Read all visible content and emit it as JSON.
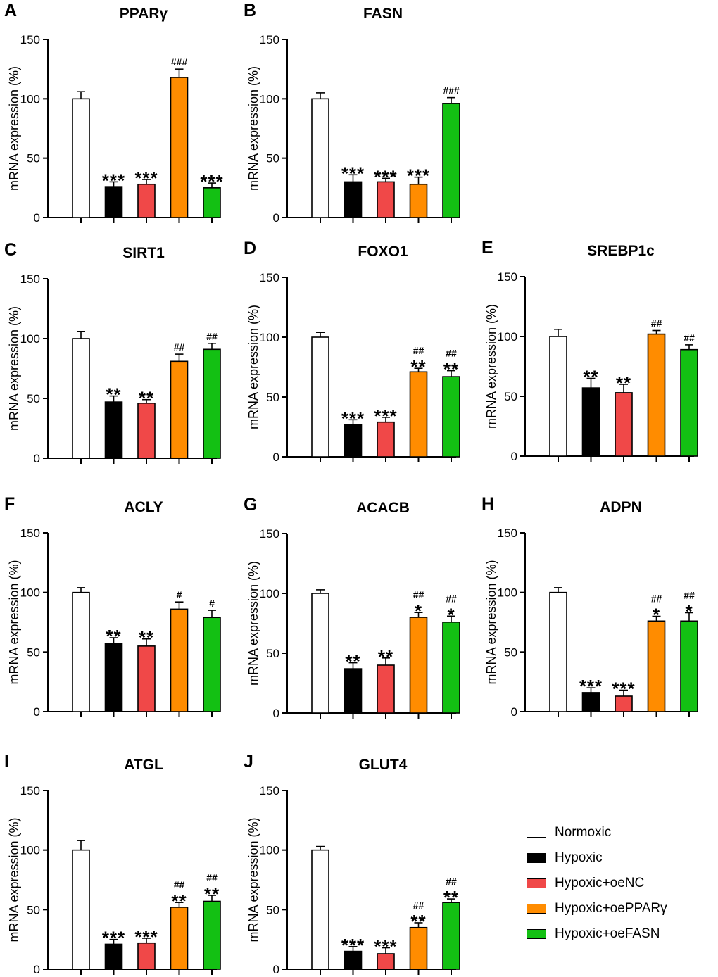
{
  "chart_data": {
    "type": "bar",
    "ylabel": "mRNA expression (%)",
    "ylim": [
      0,
      150
    ],
    "yticks": [
      "0",
      "50",
      "100",
      "150"
    ],
    "categories": [
      "Normoxic",
      "Hypoxic",
      "Hypoxic+oeNC",
      "Hypoxic+oePPARγ",
      "Hypoxic+oeFASN"
    ],
    "colors": [
      "#ffffff",
      "#000000",
      "#f04848",
      "#ff8c00",
      "#13c013"
    ],
    "panels": [
      {
        "letter": "A",
        "title": "PPARγ",
        "values": [
          100,
          26,
          28,
          118,
          25
        ],
        "errors": [
          6,
          4,
          4,
          7,
          4
        ],
        "stars": [
          "",
          "***",
          "***",
          "",
          "***"
        ],
        "hashes": [
          "",
          "",
          "",
          "###",
          ""
        ]
      },
      {
        "letter": "B",
        "title": "FASN",
        "values": [
          100,
          30,
          30,
          28,
          96
        ],
        "errors": [
          5,
          6,
          3,
          6,
          5
        ],
        "stars": [
          "",
          "***",
          "***",
          "***",
          ""
        ],
        "hashes": [
          "",
          "",
          "",
          "",
          "###"
        ]
      },
      {
        "letter": "C",
        "title": "SIRT1",
        "values": [
          100,
          47,
          46,
          81,
          91
        ],
        "errors": [
          6,
          5,
          3,
          6,
          5
        ],
        "stars": [
          "",
          "**",
          "**",
          "",
          ""
        ],
        "hashes": [
          "",
          "",
          "",
          "##",
          "##"
        ]
      },
      {
        "letter": "D",
        "title": "FOXO1",
        "values": [
          100,
          27,
          29,
          71,
          67
        ],
        "errors": [
          4,
          4,
          4,
          3,
          5
        ],
        "stars": [
          "",
          "***",
          "***",
          "**",
          "**"
        ],
        "hashes": [
          "",
          "",
          "",
          "##",
          "##"
        ]
      },
      {
        "letter": "E",
        "title": "SREBP1c",
        "values": [
          100,
          57,
          53,
          102,
          89
        ],
        "errors": [
          6,
          8,
          7,
          3,
          4
        ],
        "stars": [
          "",
          "**",
          "**",
          "",
          ""
        ],
        "hashes": [
          "",
          "",
          "",
          "##",
          "##"
        ]
      },
      {
        "letter": "F",
        "title": "ACLY",
        "values": [
          100,
          57,
          55,
          86,
          79
        ],
        "errors": [
          4,
          5,
          6,
          6,
          6
        ],
        "stars": [
          "",
          "**",
          "**",
          "",
          ""
        ],
        "hashes": [
          "",
          "",
          "",
          "#",
          "#"
        ]
      },
      {
        "letter": "G",
        "title": "ACACB",
        "values": [
          100,
          37,
          40,
          80,
          76
        ],
        "errors": [
          3,
          5,
          6,
          4,
          5
        ],
        "stars": [
          "",
          "**",
          "**",
          "*",
          "*"
        ],
        "hashes": [
          "",
          "",
          "",
          "##",
          "##"
        ]
      },
      {
        "letter": "H",
        "title": "ADPN",
        "values": [
          100,
          16,
          13,
          76,
          76
        ],
        "errors": [
          4,
          4,
          5,
          4,
          7
        ],
        "stars": [
          "",
          "***",
          "***",
          "*",
          "*"
        ],
        "hashes": [
          "",
          "",
          "",
          "##",
          "##"
        ]
      },
      {
        "letter": "I",
        "title": "ATGL",
        "values": [
          100,
          21,
          22,
          52,
          57
        ],
        "errors": [
          8,
          4,
          4,
          4,
          5
        ],
        "stars": [
          "",
          "***",
          "***",
          "**",
          "**"
        ],
        "hashes": [
          "",
          "",
          "",
          "##",
          "##"
        ]
      },
      {
        "letter": "J",
        "title": "GLUT4",
        "values": [
          100,
          15,
          13,
          35,
          56
        ],
        "errors": [
          3,
          4,
          5,
          4,
          3
        ],
        "stars": [
          "",
          "***",
          "***",
          "**",
          "**"
        ],
        "hashes": [
          "",
          "",
          "",
          "##",
          "##"
        ]
      }
    ]
  }
}
